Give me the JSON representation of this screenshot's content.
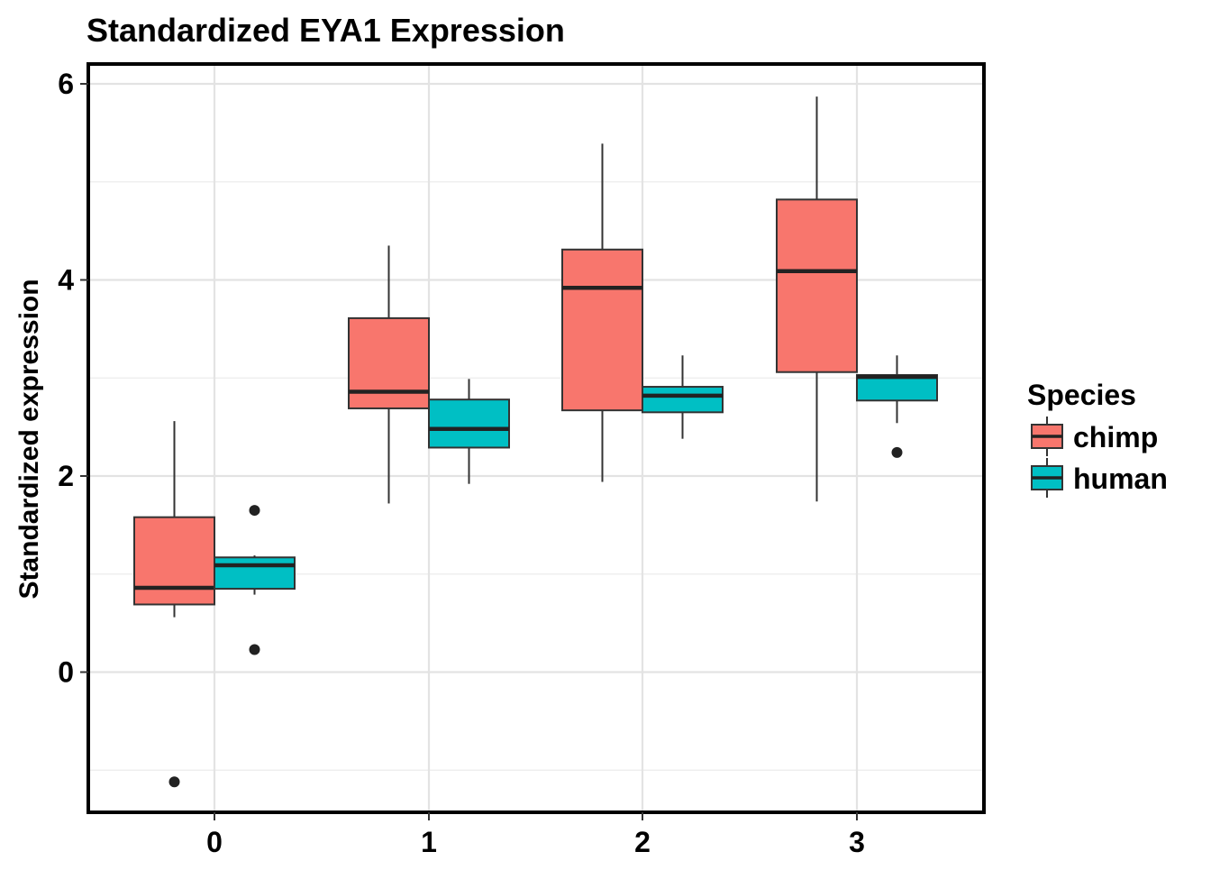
{
  "chart_data": {
    "type": "boxplot",
    "title": "Standardized EYA1 Expression",
    "xlabel": "",
    "ylabel": "Standardized expression",
    "categories": [
      "0",
      "1",
      "2",
      "3"
    ],
    "y_ticks": [
      0,
      2,
      4,
      6
    ],
    "ylim": [
      -1.45,
      6.2
    ],
    "grid": true,
    "legend": {
      "title": "Species",
      "position": "right"
    },
    "series": [
      {
        "name": "chimp",
        "color": "#F8766D",
        "boxes": [
          {
            "category": "0",
            "whisker_low": 0.56,
            "q1": 0.69,
            "median": 0.86,
            "q3": 1.58,
            "whisker_high": 2.56,
            "outliers": [
              -1.12
            ]
          },
          {
            "category": "1",
            "whisker_low": 1.72,
            "q1": 2.69,
            "median": 2.86,
            "q3": 3.61,
            "whisker_high": 4.35,
            "outliers": []
          },
          {
            "category": "2",
            "whisker_low": 1.94,
            "q1": 2.67,
            "median": 3.92,
            "q3": 4.31,
            "whisker_high": 5.39,
            "outliers": []
          },
          {
            "category": "3",
            "whisker_low": 1.74,
            "q1": 3.06,
            "median": 4.09,
            "q3": 4.82,
            "whisker_high": 5.87,
            "outliers": []
          }
        ]
      },
      {
        "name": "human",
        "color": "#00BFC4",
        "boxes": [
          {
            "category": "0",
            "whisker_low": 0.79,
            "q1": 0.85,
            "median": 1.09,
            "q3": 1.17,
            "whisker_high": 1.19,
            "outliers": [
              1.65,
              0.23
            ]
          },
          {
            "category": "1",
            "whisker_low": 1.92,
            "q1": 2.29,
            "median": 2.48,
            "q3": 2.78,
            "whisker_high": 2.99,
            "outliers": []
          },
          {
            "category": "2",
            "whisker_low": 2.38,
            "q1": 2.65,
            "median": 2.82,
            "q3": 2.91,
            "whisker_high": 3.23,
            "outliers": []
          },
          {
            "category": "3",
            "whisker_low": 2.54,
            "q1": 2.77,
            "median": 3.01,
            "q3": 3.03,
            "whisker_high": 3.23,
            "outliers": [
              2.24
            ]
          }
        ]
      }
    ]
  }
}
